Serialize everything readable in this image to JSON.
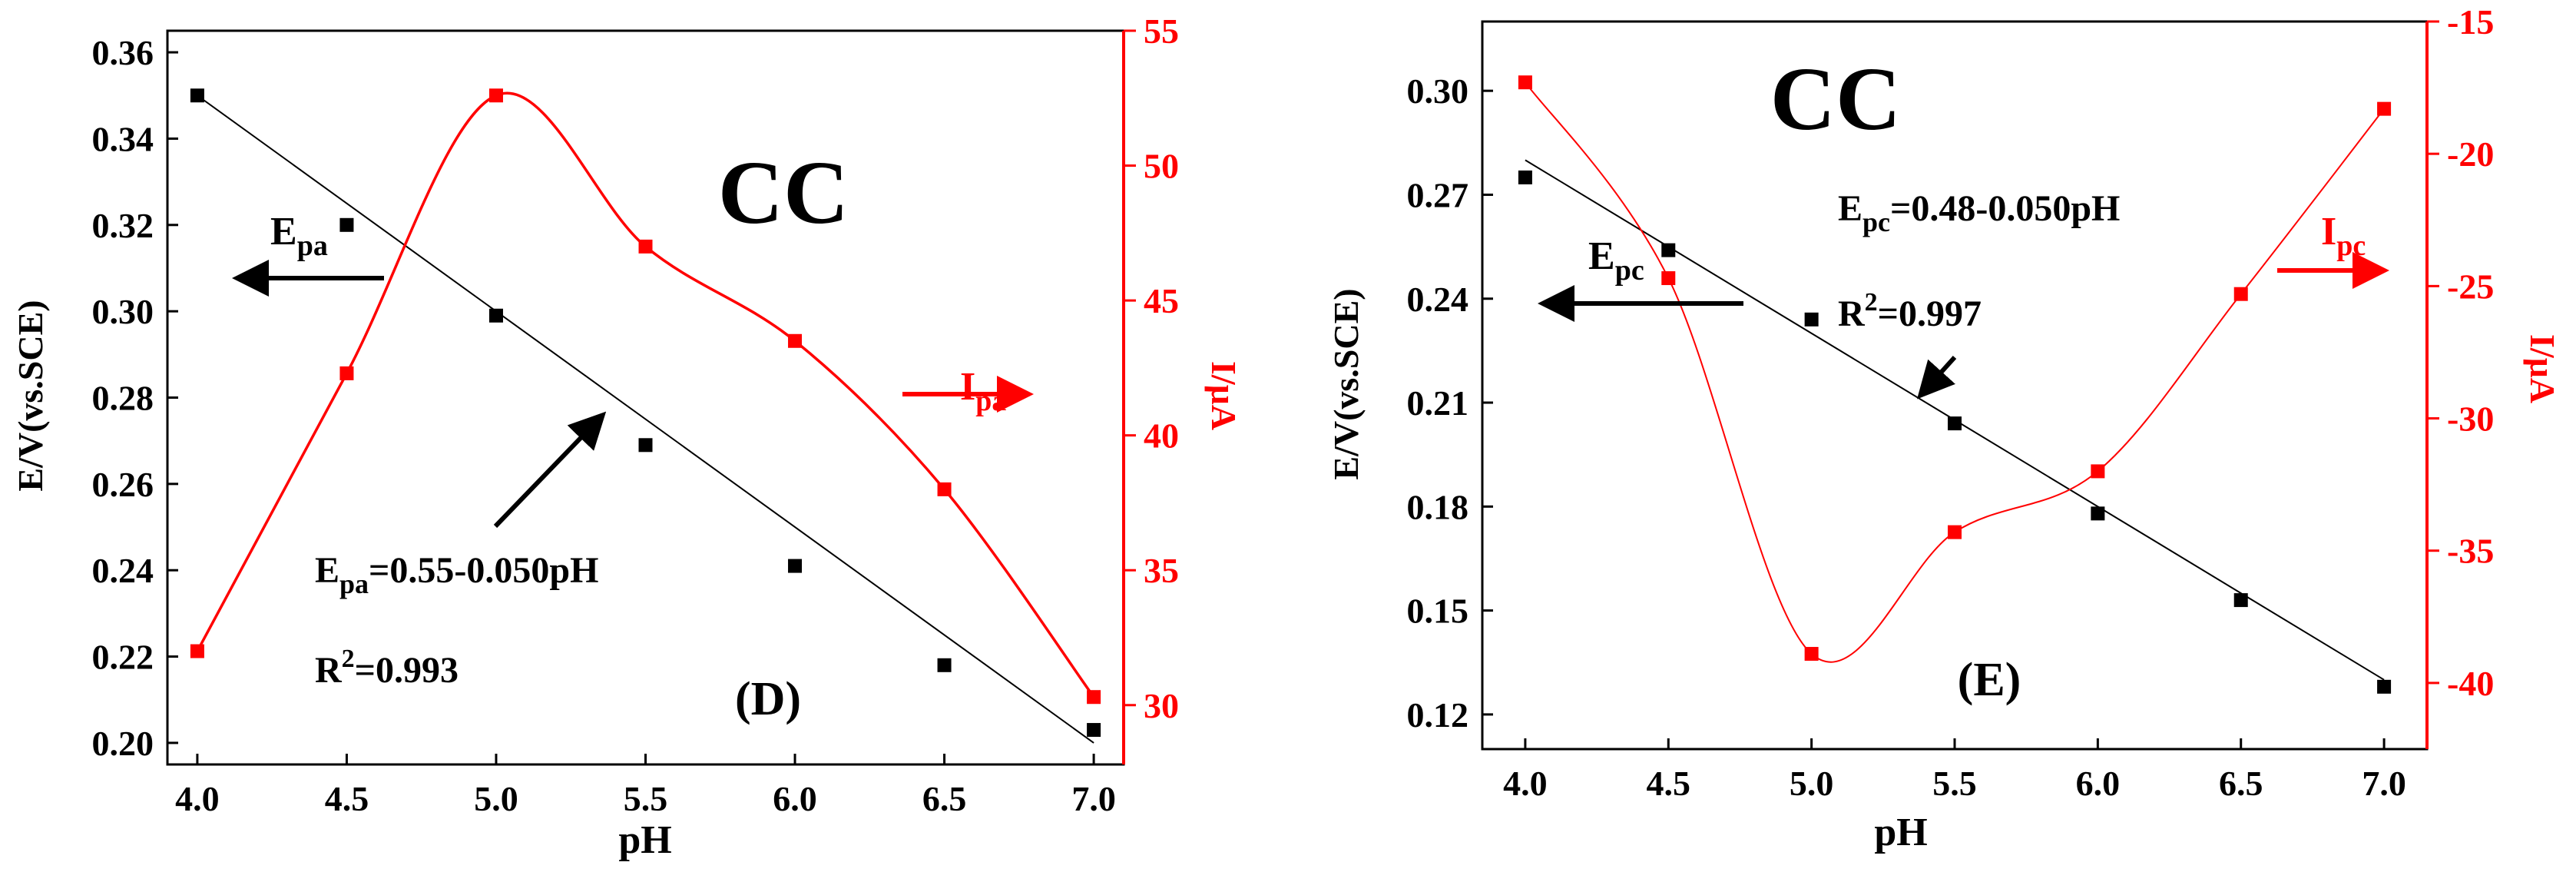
{
  "colors": {
    "black": "#000000",
    "red": "#ff0000"
  },
  "chart_data": [
    {
      "type": "line",
      "panel_label": "(D)",
      "title": "CC",
      "xlabel": "pH",
      "ylabel_left": "E/V(vs.SCE)",
      "ylabel_right": "I/μA",
      "xlim": [
        3.9,
        7.1
      ],
      "ylim_left": [
        0.195,
        0.365
      ],
      "ylim_right": [
        27.8,
        55
      ],
      "x_ticks": [
        "4.0",
        "4.5",
        "5.0",
        "5.5",
        "6.0",
        "6.5",
        "7.0"
      ],
      "y_left_ticks": [
        "0.20",
        "0.22",
        "0.24",
        "0.26",
        "0.28",
        "0.30",
        "0.32",
        "0.34",
        "0.36"
      ],
      "y_right_ticks": [
        "30",
        "35",
        "40",
        "45",
        "50",
        "55"
      ],
      "series": [
        {
          "name": "Epa",
          "axis": "left",
          "color": "#000000",
          "marker": "square",
          "x": [
            4.0,
            4.5,
            5.0,
            5.5,
            6.0,
            6.5,
            7.0
          ],
          "values": [
            0.35,
            0.32,
            0.299,
            0.269,
            0.241,
            0.218,
            0.203
          ]
        },
        {
          "name": "Ipa",
          "axis": "right",
          "color": "#ff0000",
          "marker": "square",
          "x": [
            4.0,
            4.5,
            5.0,
            5.5,
            6.0,
            6.5,
            7.0
          ],
          "values": [
            32.0,
            42.3,
            52.6,
            47.0,
            43.5,
            38.0,
            30.3
          ]
        }
      ],
      "fit": {
        "slope": -0.05,
        "intercept": 0.55,
        "x_range": [
          4.0,
          7.0
        ],
        "color": "#000000"
      },
      "annotations": {
        "curve_label_main": "E",
        "curve_label_sub": "pa",
        "current_label_main": "I",
        "current_label_sub": "pa",
        "eq_main": "E",
        "eq_sub": "pa",
        "eq_rest": "=0.55-0.050pH",
        "r2_main": "R",
        "r2_sup": "2",
        "r2_rest": "=0.993"
      }
    },
    {
      "type": "line",
      "panel_label": "(E)",
      "title": "CC",
      "xlabel": "pH",
      "ylabel_left": "E/V(vs.SCE)",
      "ylabel_right": "I/μA",
      "xlim": [
        3.85,
        7.15
      ],
      "ylim_left": [
        0.11,
        0.32
      ],
      "ylim_right": [
        -42.5,
        -15
      ],
      "x_ticks": [
        "4.0",
        "4.5",
        "5.0",
        "5.5",
        "6.0",
        "6.5",
        "7.0"
      ],
      "y_left_ticks": [
        "0.12",
        "0.15",
        "0.18",
        "0.21",
        "0.24",
        "0.27",
        "0.30"
      ],
      "y_right_ticks": [
        "-40",
        "-35",
        "-30",
        "-25",
        "-20",
        "-15"
      ],
      "series": [
        {
          "name": "Epc",
          "axis": "left",
          "color": "#000000",
          "marker": "square",
          "x": [
            4.0,
            4.5,
            5.0,
            5.5,
            6.0,
            6.5,
            7.0
          ],
          "values": [
            0.275,
            0.254,
            0.234,
            0.204,
            0.178,
            0.153,
            0.128
          ]
        },
        {
          "name": "Ipc",
          "axis": "right",
          "color": "#ff0000",
          "marker": "square",
          "x": [
            4.0,
            4.5,
            5.0,
            5.5,
            6.0,
            6.5,
            7.0
          ],
          "values": [
            -17.3,
            -24.7,
            -38.9,
            -34.3,
            -32.0,
            -25.3,
            -18.3
          ]
        }
      ],
      "fit": {
        "slope": -0.05,
        "intercept": 0.48,
        "x_range": [
          4.0,
          7.0
        ],
        "color": "#000000"
      },
      "annotations": {
        "curve_label_main": "E",
        "curve_label_sub": "pc",
        "current_label_main": "I",
        "current_label_sub": "pc",
        "eq_main": "E",
        "eq_sub": "pc",
        "eq_rest": "=0.48-0.050pH",
        "r2_main": "R",
        "r2_sup": "2",
        "r2_rest": "=0.997"
      }
    }
  ]
}
